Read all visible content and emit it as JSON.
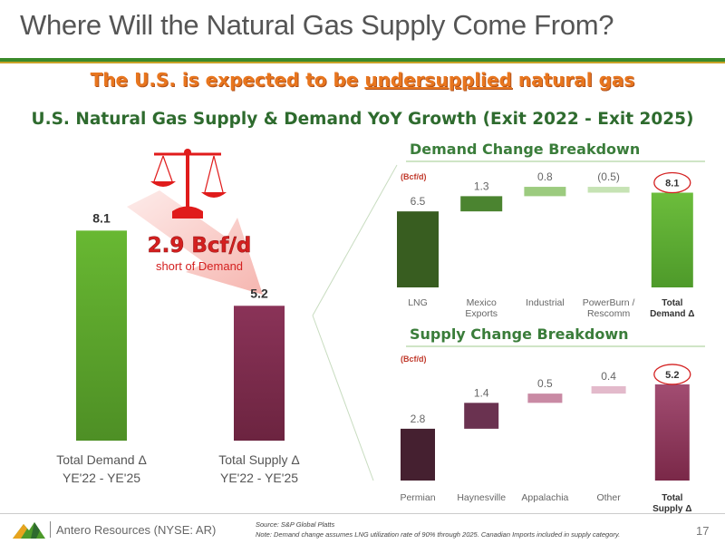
{
  "title": "Where Will the Natural Gas Supply Come From?",
  "subtitle": {
    "prefix": "The U.S. is expected to be ",
    "underlined": "undersupplied",
    "suffix": " natural gas"
  },
  "chart_title": "U.S. Natural Gas Supply & Demand YoY Growth (Exit 2022 - Exit 2025)",
  "colors": {
    "brand_green": "#3a8a2a",
    "accent_orange": "#e8761e",
    "callout_red": "#d42020",
    "demand_green": "#4c9a2a",
    "supply_maroon": "#7a2848"
  },
  "left_panel": {
    "shortfall_value": "2.9 Bcf/d",
    "shortfall_label": "short of Demand",
    "scale_icon": "balance-scale-icon",
    "arrow_icon": "down-right-arrow-icon"
  },
  "demand_breakdown": {
    "title": "Demand Change Breakdown",
    "unit": "(Bcf/d)"
  },
  "supply_breakdown": {
    "title": "Supply Change Breakdown",
    "unit": "(Bcf/d)"
  },
  "footer": {
    "company": "Antero Resources (NYSE: AR)",
    "source": "Source:  S&P Global Platts",
    "note": "Note:  Demand change assumes LNG utilization rate of 90% through 2025. Canadian Imports included in supply category.",
    "page": "17",
    "logo_icon": "antero-mountain-logo-icon"
  },
  "chart_data": [
    {
      "type": "bar",
      "categories": [
        "Total Demand Δ\nYE'22 - YE'25",
        "Total Supply Δ\nYE'22 - YE'25"
      ],
      "values": [
        8.1,
        5.2
      ],
      "labels": [
        "8.1",
        "5.2"
      ],
      "colors": [
        "#5aa82c",
        "#7a2848"
      ]
    },
    {
      "type": "bar",
      "subtype": "waterfall",
      "title": "Demand Change Breakdown",
      "ylabel": "(Bcf/d)",
      "categories": [
        "LNG",
        "Mexico\nExports",
        "Industrial",
        "PowerBurn /\nRescomm",
        "Total\nDemand Δ"
      ],
      "values": [
        6.5,
        1.3,
        0.8,
        -0.5,
        8.1
      ],
      "labels": [
        "6.5",
        "1.3",
        "0.8",
        "(0.5)",
        "8.1"
      ],
      "total_index": 4
    },
    {
      "type": "bar",
      "subtype": "waterfall",
      "title": "Supply Change Breakdown",
      "ylabel": "(Bcf/d)",
      "categories": [
        "Permian",
        "Haynesville",
        "Appalachia",
        "Other",
        "Total\nSupply Δ"
      ],
      "values": [
        2.8,
        1.4,
        0.5,
        0.4,
        5.2
      ],
      "labels": [
        "2.8",
        "1.4",
        "0.5",
        "0.4",
        "5.2"
      ],
      "total_index": 4
    }
  ]
}
